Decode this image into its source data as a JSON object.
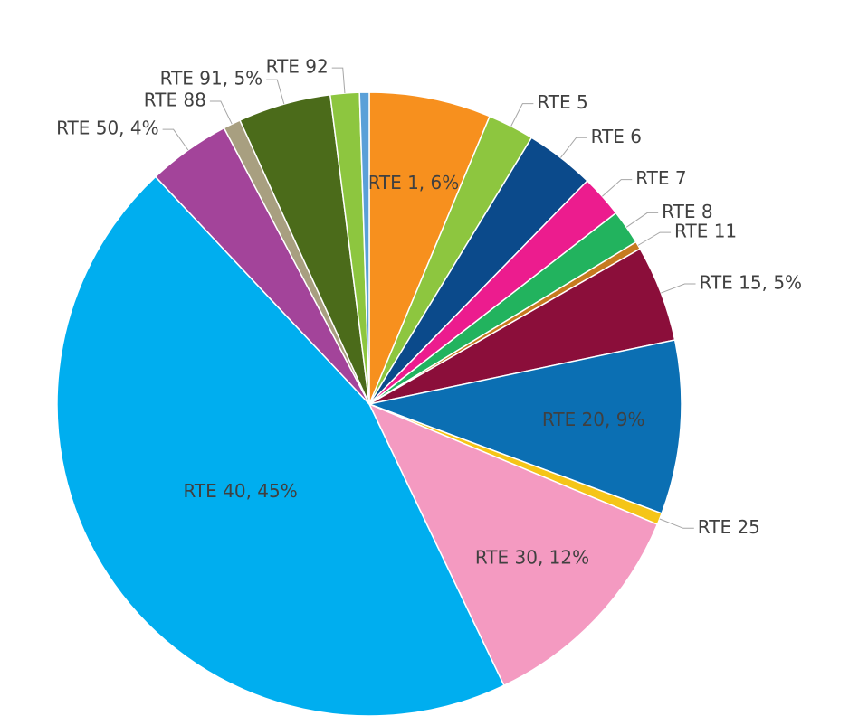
{
  "chart_data": {
    "type": "pie",
    "labels": [
      "RTE 1, 6%",
      "RTE 5",
      "RTE 6",
      "RTE 7",
      "RTE 8",
      "RTE 11",
      "RTE 15, 5%",
      "RTE 20, 9%",
      "RTE 25",
      "RTE 30, 12%",
      "RTE 40, 45%",
      "RTE 50, 4%",
      "RTE 88",
      "RTE 91, 5%",
      "RTE 92",
      null
    ],
    "values": [
      6.3,
      2.4,
      3.6,
      2.2,
      1.8,
      0.4,
      5.0,
      9.0,
      0.6,
      11.6,
      45.1,
      4.3,
      0.9,
      4.8,
      1.5,
      0.5
    ],
    "colors": [
      "#f7901e",
      "#8dc63f",
      "#0b4a8b",
      "#ec1c8e",
      "#22b35e",
      "#c67a1f",
      "#8b0e3a",
      "#0b6fb3",
      "#f5c518",
      "#f49ac1",
      "#00aeef",
      "#a3449a",
      "#a89f80",
      "#4b6b1a",
      "#8dc63f",
      "#5aa0d8"
    ]
  }
}
